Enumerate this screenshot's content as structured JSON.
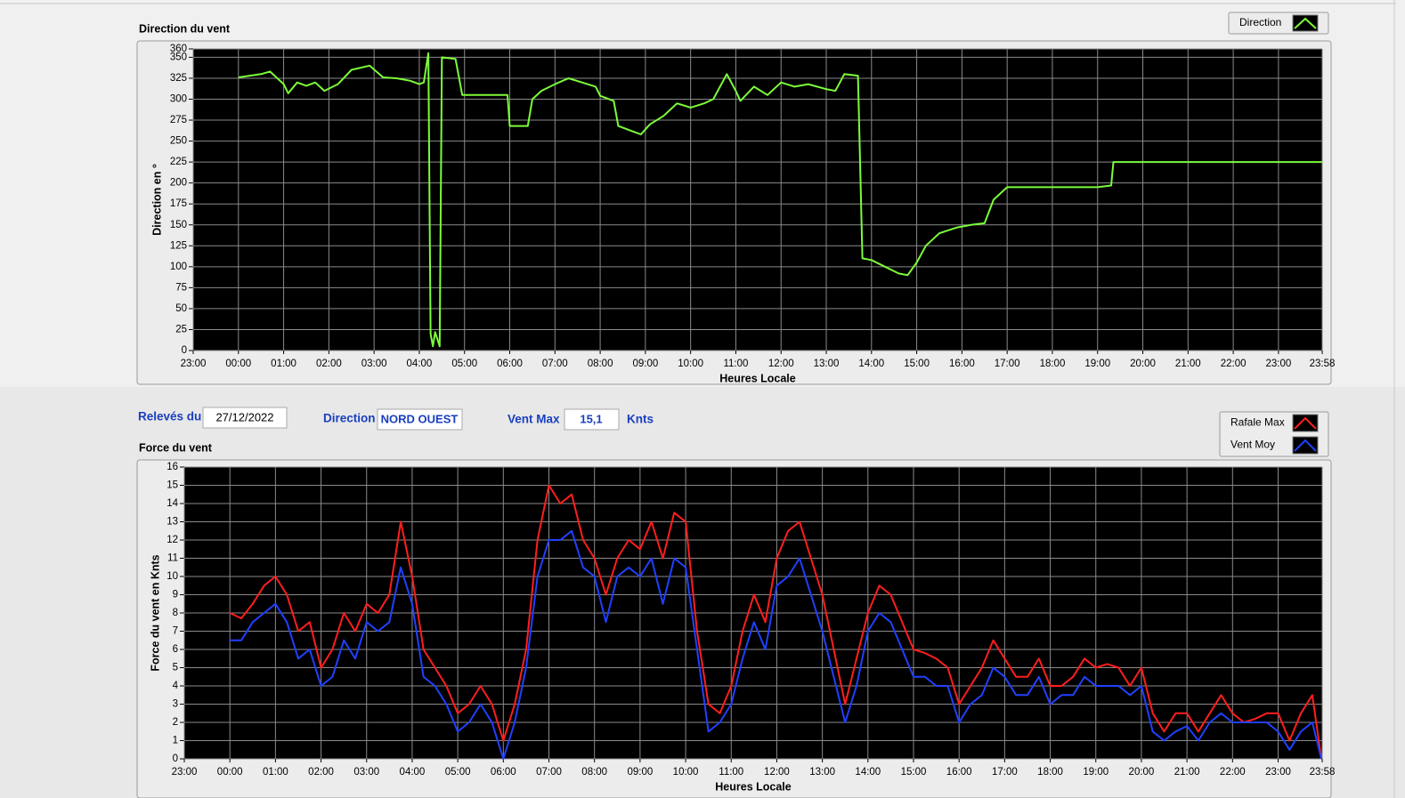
{
  "chart_data": [
    {
      "type": "line",
      "title": "Direction du vent",
      "ylabel": "Direction en °",
      "xlabel": "Heures Locale",
      "xlim": [
        0,
        24.967
      ],
      "xticks": [
        {
          "value": 0,
          "label": "23:00"
        },
        {
          "value": 1,
          "label": "00:00"
        },
        {
          "value": 2,
          "label": "01:00"
        },
        {
          "value": 3,
          "label": "02:00"
        },
        {
          "value": 4,
          "label": "03:00"
        },
        {
          "value": 5,
          "label": "04:00"
        },
        {
          "value": 6,
          "label": "05:00"
        },
        {
          "value": 7,
          "label": "06:00"
        },
        {
          "value": 8,
          "label": "07:00"
        },
        {
          "value": 9,
          "label": "08:00"
        },
        {
          "value": 10,
          "label": "09:00"
        },
        {
          "value": 11,
          "label": "10:00"
        },
        {
          "value": 12,
          "label": "11:00"
        },
        {
          "value": 13,
          "label": "12:00"
        },
        {
          "value": 14,
          "label": "13:00"
        },
        {
          "value": 15,
          "label": "14:00"
        },
        {
          "value": 16,
          "label": "15:00"
        },
        {
          "value": 17,
          "label": "16:00"
        },
        {
          "value": 18,
          "label": "17:00"
        },
        {
          "value": 19,
          "label": "18:00"
        },
        {
          "value": 20,
          "label": "19:00"
        },
        {
          "value": 21,
          "label": "20:00"
        },
        {
          "value": 22,
          "label": "21:00"
        },
        {
          "value": 23,
          "label": "22:00"
        },
        {
          "value": 24,
          "label": "23:00"
        },
        {
          "value": 24.967,
          "label": "23:58"
        }
      ],
      "ylim": [
        0,
        360
      ],
      "yticks": [
        0,
        25,
        50,
        75,
        100,
        125,
        150,
        175,
        200,
        225,
        250,
        275,
        300,
        325,
        350,
        360
      ],
      "grid": true,
      "legend": "top-right",
      "x": [
        1,
        1.5,
        1.7,
        2,
        2.1,
        2.3,
        2.5,
        2.7,
        2.9,
        3.2,
        3.5,
        3.9,
        4.2,
        4.5,
        4.8,
        5,
        5.1,
        5.2,
        5.25,
        5.3,
        5.35,
        5.45,
        5.5,
        5.8,
        5.95,
        6.5,
        6.95,
        7,
        7.4,
        7.5,
        7.7,
        8,
        8.3,
        8.6,
        8.9,
        9,
        9.3,
        9.4,
        9.7,
        9.9,
        10.1,
        10.4,
        10.7,
        11,
        11.3,
        11.5,
        11.8,
        12,
        12.1,
        12.4,
        12.7,
        13,
        13.3,
        13.6,
        14,
        14.2,
        14.3,
        14.4,
        14.7,
        14.75,
        14.8,
        15,
        15.3,
        15.6,
        15.8,
        16,
        16.2,
        16.5,
        16.9,
        17.2,
        17.5,
        17.7,
        18,
        18.5,
        19,
        19.6,
        20,
        20.3,
        20.35,
        21,
        22,
        23,
        24,
        24.967
      ],
      "series": [
        {
          "name": "Direction",
          "color": "#7cfc3a",
          "values": [
            326,
            330,
            333,
            318,
            307,
            320,
            316,
            320,
            310,
            318,
            335,
            340,
            326,
            325,
            322,
            318,
            320,
            355,
            20,
            5,
            22,
            5,
            350,
            348,
            305,
            305,
            305,
            268,
            268,
            300,
            310,
            318,
            325,
            320,
            315,
            304,
            298,
            268,
            262,
            258,
            270,
            280,
            295,
            290,
            295,
            300,
            330,
            310,
            298,
            315,
            305,
            320,
            315,
            318,
            312,
            310,
            320,
            330,
            328,
            220,
            110,
            108,
            100,
            92,
            90,
            105,
            125,
            140,
            147,
            150,
            152,
            180,
            195,
            195,
            195,
            195,
            195,
            197,
            225,
            225,
            225,
            225,
            225,
            225
          ]
        }
      ]
    },
    {
      "type": "line",
      "title": "Force du vent",
      "ylabel": "Force du vent en Knts",
      "xlabel": "Heures Locale",
      "xlim": [
        0,
        24.967
      ],
      "xticks": [
        {
          "value": 0,
          "label": "23:00"
        },
        {
          "value": 1,
          "label": "00:00"
        },
        {
          "value": 2,
          "label": "01:00"
        },
        {
          "value": 3,
          "label": "02:00"
        },
        {
          "value": 4,
          "label": "03:00"
        },
        {
          "value": 5,
          "label": "04:00"
        },
        {
          "value": 6,
          "label": "05:00"
        },
        {
          "value": 7,
          "label": "06:00"
        },
        {
          "value": 8,
          "label": "07:00"
        },
        {
          "value": 9,
          "label": "08:00"
        },
        {
          "value": 10,
          "label": "09:00"
        },
        {
          "value": 11,
          "label": "10:00"
        },
        {
          "value": 12,
          "label": "11:00"
        },
        {
          "value": 13,
          "label": "12:00"
        },
        {
          "value": 14,
          "label": "13:00"
        },
        {
          "value": 15,
          "label": "14:00"
        },
        {
          "value": 16,
          "label": "15:00"
        },
        {
          "value": 17,
          "label": "16:00"
        },
        {
          "value": 18,
          "label": "17:00"
        },
        {
          "value": 19,
          "label": "18:00"
        },
        {
          "value": 20,
          "label": "19:00"
        },
        {
          "value": 21,
          "label": "20:00"
        },
        {
          "value": 22,
          "label": "21:00"
        },
        {
          "value": 23,
          "label": "22:00"
        },
        {
          "value": 24,
          "label": "23:00"
        },
        {
          "value": 24.967,
          "label": "23:58"
        }
      ],
      "ylim": [
        0,
        16
      ],
      "yticks": [
        0,
        1,
        2,
        3,
        4,
        5,
        6,
        7,
        8,
        9,
        10,
        11,
        12,
        13,
        14,
        15,
        16
      ],
      "grid": true,
      "legend": "top-right",
      "x": [
        1,
        1.25,
        1.5,
        1.75,
        2,
        2.25,
        2.5,
        2.75,
        3,
        3.25,
        3.5,
        3.75,
        4,
        4.25,
        4.5,
        4.75,
        5,
        5.25,
        5.5,
        5.75,
        6,
        6.25,
        6.5,
        6.75,
        7,
        7.25,
        7.5,
        7.75,
        8,
        8.25,
        8.5,
        8.75,
        9,
        9.25,
        9.5,
        9.75,
        10,
        10.25,
        10.5,
        10.75,
        11,
        11.25,
        11.5,
        11.75,
        12,
        12.25,
        12.5,
        12.75,
        13,
        13.25,
        13.5,
        13.75,
        14,
        14.25,
        14.5,
        14.75,
        15,
        15.25,
        15.5,
        15.75,
        16,
        16.25,
        16.5,
        16.75,
        17,
        17.25,
        17.5,
        17.75,
        18,
        18.25,
        18.5,
        18.75,
        19,
        19.25,
        19.5,
        19.75,
        20,
        20.25,
        20.5,
        20.75,
        21,
        21.25,
        21.5,
        21.75,
        22,
        22.25,
        22.5,
        22.75,
        23,
        23.25,
        23.5,
        23.75,
        24,
        24.25,
        24.5,
        24.75,
        24.95
      ],
      "series": [
        {
          "name": "Rafale Max",
          "color": "#ff1e1e",
          "values": [
            8,
            7.7,
            8.5,
            9.5,
            10,
            9,
            7,
            7.5,
            5,
            6,
            8,
            7,
            8.5,
            8,
            9,
            13,
            10,
            6,
            5,
            4,
            2.5,
            3,
            4,
            3,
            1,
            3,
            6,
            12,
            15,
            14,
            14.5,
            12,
            11,
            9,
            11,
            12,
            11.5,
            13,
            11,
            13.5,
            13,
            7,
            3,
            2.5,
            4,
            7,
            9,
            7.5,
            11,
            12.5,
            13,
            11,
            9,
            6,
            3,
            5.5,
            8,
            9.5,
            9,
            7.5,
            6,
            5.8,
            5.5,
            5,
            3,
            4,
            5,
            6.5,
            5.5,
            4.5,
            4.5,
            5.5,
            4,
            4,
            4.5,
            5.5,
            5,
            5.2,
            5,
            4,
            5,
            2.5,
            1.5,
            2.5,
            2.5,
            1.5,
            2.5,
            3.5,
            2.5,
            2,
            2.2,
            2.5,
            2.5,
            1,
            2.5,
            3.5,
            0
          ]
        },
        {
          "name": "Vent Moy",
          "color": "#2040ff",
          "values": [
            6.5,
            6.5,
            7.5,
            8,
            8.5,
            7.5,
            5.5,
            6,
            4,
            4.5,
            6.5,
            5.5,
            7.5,
            7,
            7.5,
            10.5,
            8.5,
            4.5,
            4,
            3,
            1.5,
            2,
            3,
            2,
            0,
            2,
            5,
            10,
            12,
            12,
            12.5,
            10.5,
            10,
            7.5,
            10,
            10.5,
            10,
            11,
            8.5,
            11,
            10.5,
            6,
            1.5,
            2,
            3,
            5.5,
            7.5,
            6,
            9.5,
            10,
            11,
            9,
            7,
            4.5,
            2,
            4,
            7,
            8,
            7.5,
            6,
            4.5,
            4.5,
            4,
            4,
            2,
            3,
            3.5,
            5,
            4.5,
            3.5,
            3.5,
            4.5,
            3,
            3.5,
            3.5,
            4.5,
            4,
            4,
            4,
            3.5,
            4,
            1.5,
            1,
            1.5,
            1.8,
            1,
            2,
            2.5,
            2,
            2,
            2,
            2,
            1.5,
            0.5,
            1.5,
            2,
            0
          ]
        }
      ]
    }
  ],
  "form": {
    "date_label": "Relevés du",
    "date": "27/12/2022",
    "direction_label": "Direction",
    "direction": "NORD OUEST",
    "vmax_label": "Vent Max",
    "vmax": "15,1",
    "vmax_unit": "Knts"
  }
}
